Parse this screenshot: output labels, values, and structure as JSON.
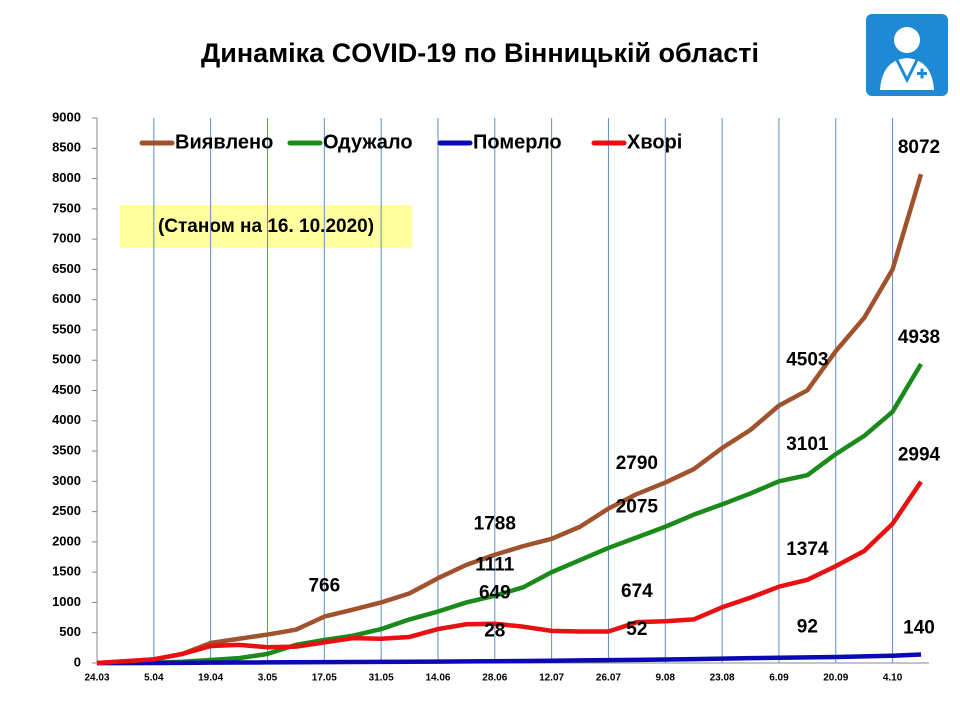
{
  "chart_data": {
    "type": "line",
    "title": "Динаміка COVID-19 по Вінницькій області",
    "annotation": "(Станом на 16. 10.2020)",
    "categories": [
      "24.03",
      null,
      "5.04",
      null,
      "19.04",
      null,
      "3.05",
      null,
      "17.05",
      null,
      "31.05",
      null,
      "14.06",
      null,
      "28.06",
      null,
      "12.07",
      null,
      "26.07",
      null,
      "9.08",
      null,
      "23.08",
      null,
      "6.09",
      null,
      "20.09",
      null,
      "4.10",
      null
    ],
    "ylim": [
      0,
      9000
    ],
    "yticks": [
      0,
      500,
      1000,
      1500,
      2000,
      2500,
      3000,
      3500,
      4000,
      4500,
      5000,
      5500,
      6000,
      6500,
      7000,
      7500,
      8000,
      8500,
      9000
    ],
    "grid": "x",
    "legend": "top-left",
    "series": [
      {
        "name": "Виявлено",
        "color": "#a0522d",
        "values": [
          0,
          30,
          60,
          150,
          330,
          400,
          470,
          550,
          766,
          880,
          1000,
          1150,
          1400,
          1620,
          1788,
          1930,
          2050,
          2250,
          2550,
          2790,
          2980,
          3200,
          3550,
          3850,
          4250,
          4503,
          5150,
          5700,
          6500,
          8072
        ],
        "value_labels": [
          null,
          null,
          null,
          null,
          null,
          null,
          null,
          null,
          "766",
          null,
          null,
          null,
          null,
          null,
          "1788",
          null,
          null,
          null,
          null,
          "2790",
          null,
          null,
          null,
          null,
          null,
          "4503",
          null,
          null,
          null,
          "8072"
        ]
      },
      {
        "name": "Одужало",
        "color": "#1a8a1a",
        "values": [
          0,
          0,
          5,
          20,
          50,
          80,
          150,
          300,
          380,
          450,
          560,
          720,
          850,
          1000,
          1111,
          1250,
          1500,
          1700,
          1900,
          2075,
          2250,
          2450,
          2620,
          2800,
          3000,
          3101,
          3450,
          3750,
          4150,
          4938
        ],
        "value_labels": [
          null,
          null,
          null,
          null,
          null,
          null,
          null,
          null,
          null,
          null,
          null,
          null,
          null,
          null,
          "1111",
          null,
          null,
          null,
          null,
          "2075",
          null,
          null,
          null,
          null,
          null,
          "3101",
          null,
          null,
          null,
          "4938"
        ]
      },
      {
        "name": "Померло",
        "color": "#0a0ab4",
        "values": [
          0,
          0,
          1,
          3,
          6,
          8,
          10,
          12,
          14,
          16,
          18,
          20,
          23,
          26,
          28,
          33,
          38,
          43,
          48,
          52,
          57,
          64,
          72,
          80,
          86,
          92,
          100,
          110,
          120,
          140
        ],
        "value_labels": [
          null,
          null,
          null,
          null,
          null,
          null,
          null,
          null,
          null,
          null,
          null,
          null,
          null,
          null,
          "28",
          null,
          null,
          null,
          null,
          "52",
          null,
          null,
          null,
          null,
          null,
          "92",
          null,
          null,
          null,
          "140"
        ]
      },
      {
        "name": "Хворі",
        "color": "#e81010",
        "values": [
          0,
          30,
          60,
          150,
          280,
          300,
          260,
          270,
          340,
          410,
          400,
          430,
          560,
          640,
          649,
          600,
          530,
          520,
          520,
          674,
          690,
          720,
          920,
          1080,
          1260,
          1374,
          1600,
          1850,
          2300,
          2994
        ],
        "value_labels": [
          null,
          null,
          null,
          null,
          null,
          null,
          null,
          null,
          null,
          null,
          null,
          null,
          null,
          null,
          "649",
          null,
          null,
          null,
          null,
          "674",
          null,
          null,
          null,
          null,
          null,
          "1374",
          null,
          null,
          null,
          "2994"
        ]
      }
    ]
  }
}
